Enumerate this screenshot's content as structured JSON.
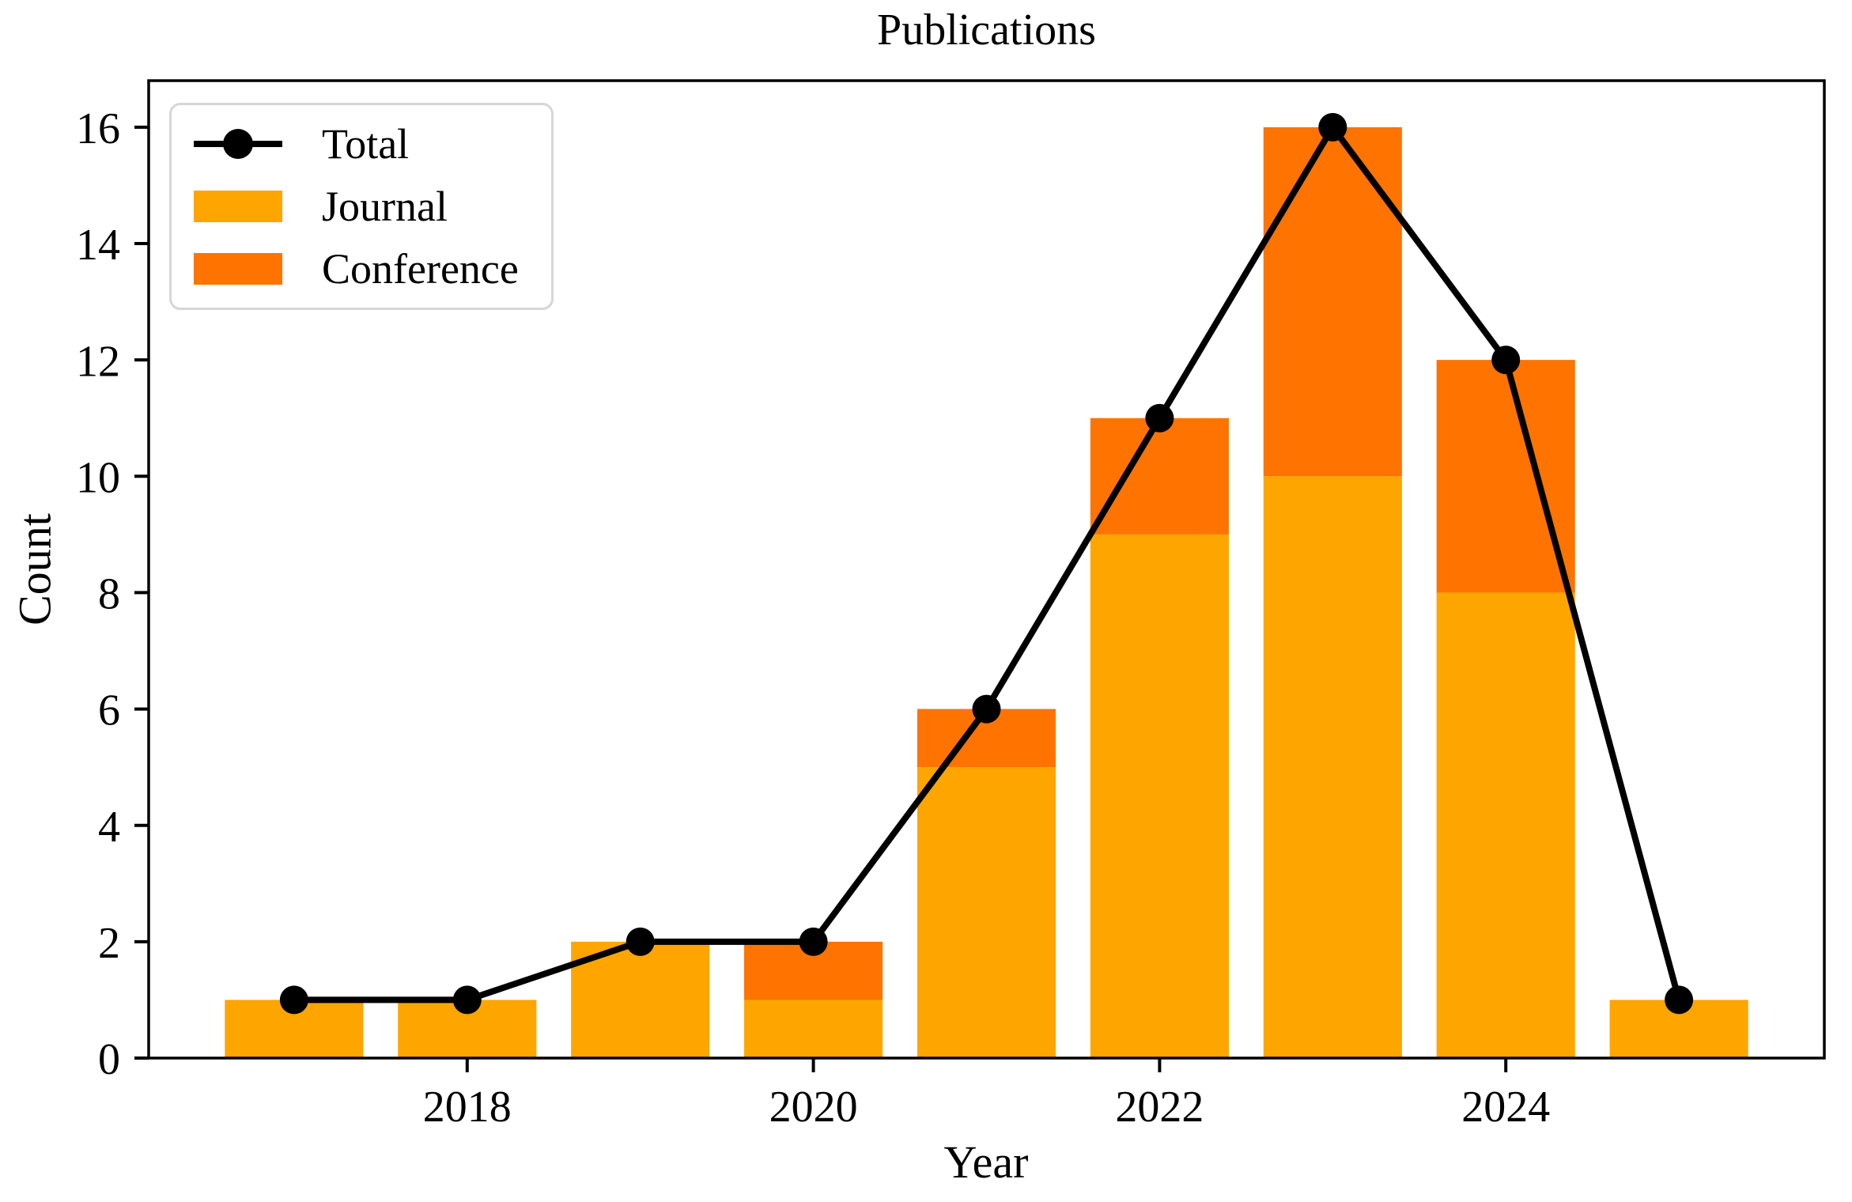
{
  "chart_data": {
    "type": "bar",
    "stacked": true,
    "title": "Publications",
    "xlabel": "Year",
    "ylabel": "Count",
    "categories": [
      2017,
      2018,
      2019,
      2020,
      2021,
      2022,
      2023,
      2024,
      2025
    ],
    "series": [
      {
        "name": "Journal",
        "type": "bar",
        "color": "#ffa500",
        "values": [
          1,
          1,
          2,
          1,
          5,
          9,
          10,
          8,
          1
        ]
      },
      {
        "name": "Conference",
        "type": "bar",
        "color": "#ff7300",
        "values": [
          0,
          0,
          0,
          1,
          1,
          2,
          6,
          4,
          0
        ]
      },
      {
        "name": "Total",
        "type": "line",
        "color": "#000000",
        "marker": "circle",
        "values": [
          1,
          1,
          2,
          2,
          6,
          11,
          16,
          12,
          1
        ]
      }
    ],
    "bar_width": 0.8,
    "xlim": [
      2016.16,
      2025.84
    ],
    "ylim": [
      0,
      16.8
    ],
    "yticks": [
      0,
      2,
      4,
      6,
      8,
      10,
      12,
      14,
      16
    ],
    "xticks": [
      2018,
      2020,
      2022,
      2024
    ],
    "grid": false,
    "legend_position": "upper left",
    "legend_labels": [
      "Total",
      "Journal",
      "Conference"
    ],
    "axis_color": "#000000",
    "background": "#ffffff"
  }
}
